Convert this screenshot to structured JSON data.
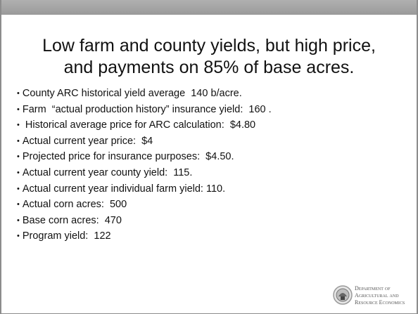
{
  "slide": {
    "title": [
      "Low farm and county yields, but high price,",
      "and payments on 85% of base acres."
    ],
    "bullets": [
      "County ARC historical yield average  140 b/acre.",
      "Farm  “actual production history” insurance yield:  160 .",
      " Historical average price for ARC calculation:  $4.80",
      "Actual current year price:  $4",
      "Projected price for insurance purposes:  $4.50.",
      "Actual current year county yield:  115.",
      "Actual current year individual farm yield: 110.",
      "Actual corn acres:  500",
      "Base corn acres:  470",
      "Program yield:  122"
    ],
    "logo": [
      "Department of",
      "Agricultural and",
      "Resource Economics"
    ]
  }
}
